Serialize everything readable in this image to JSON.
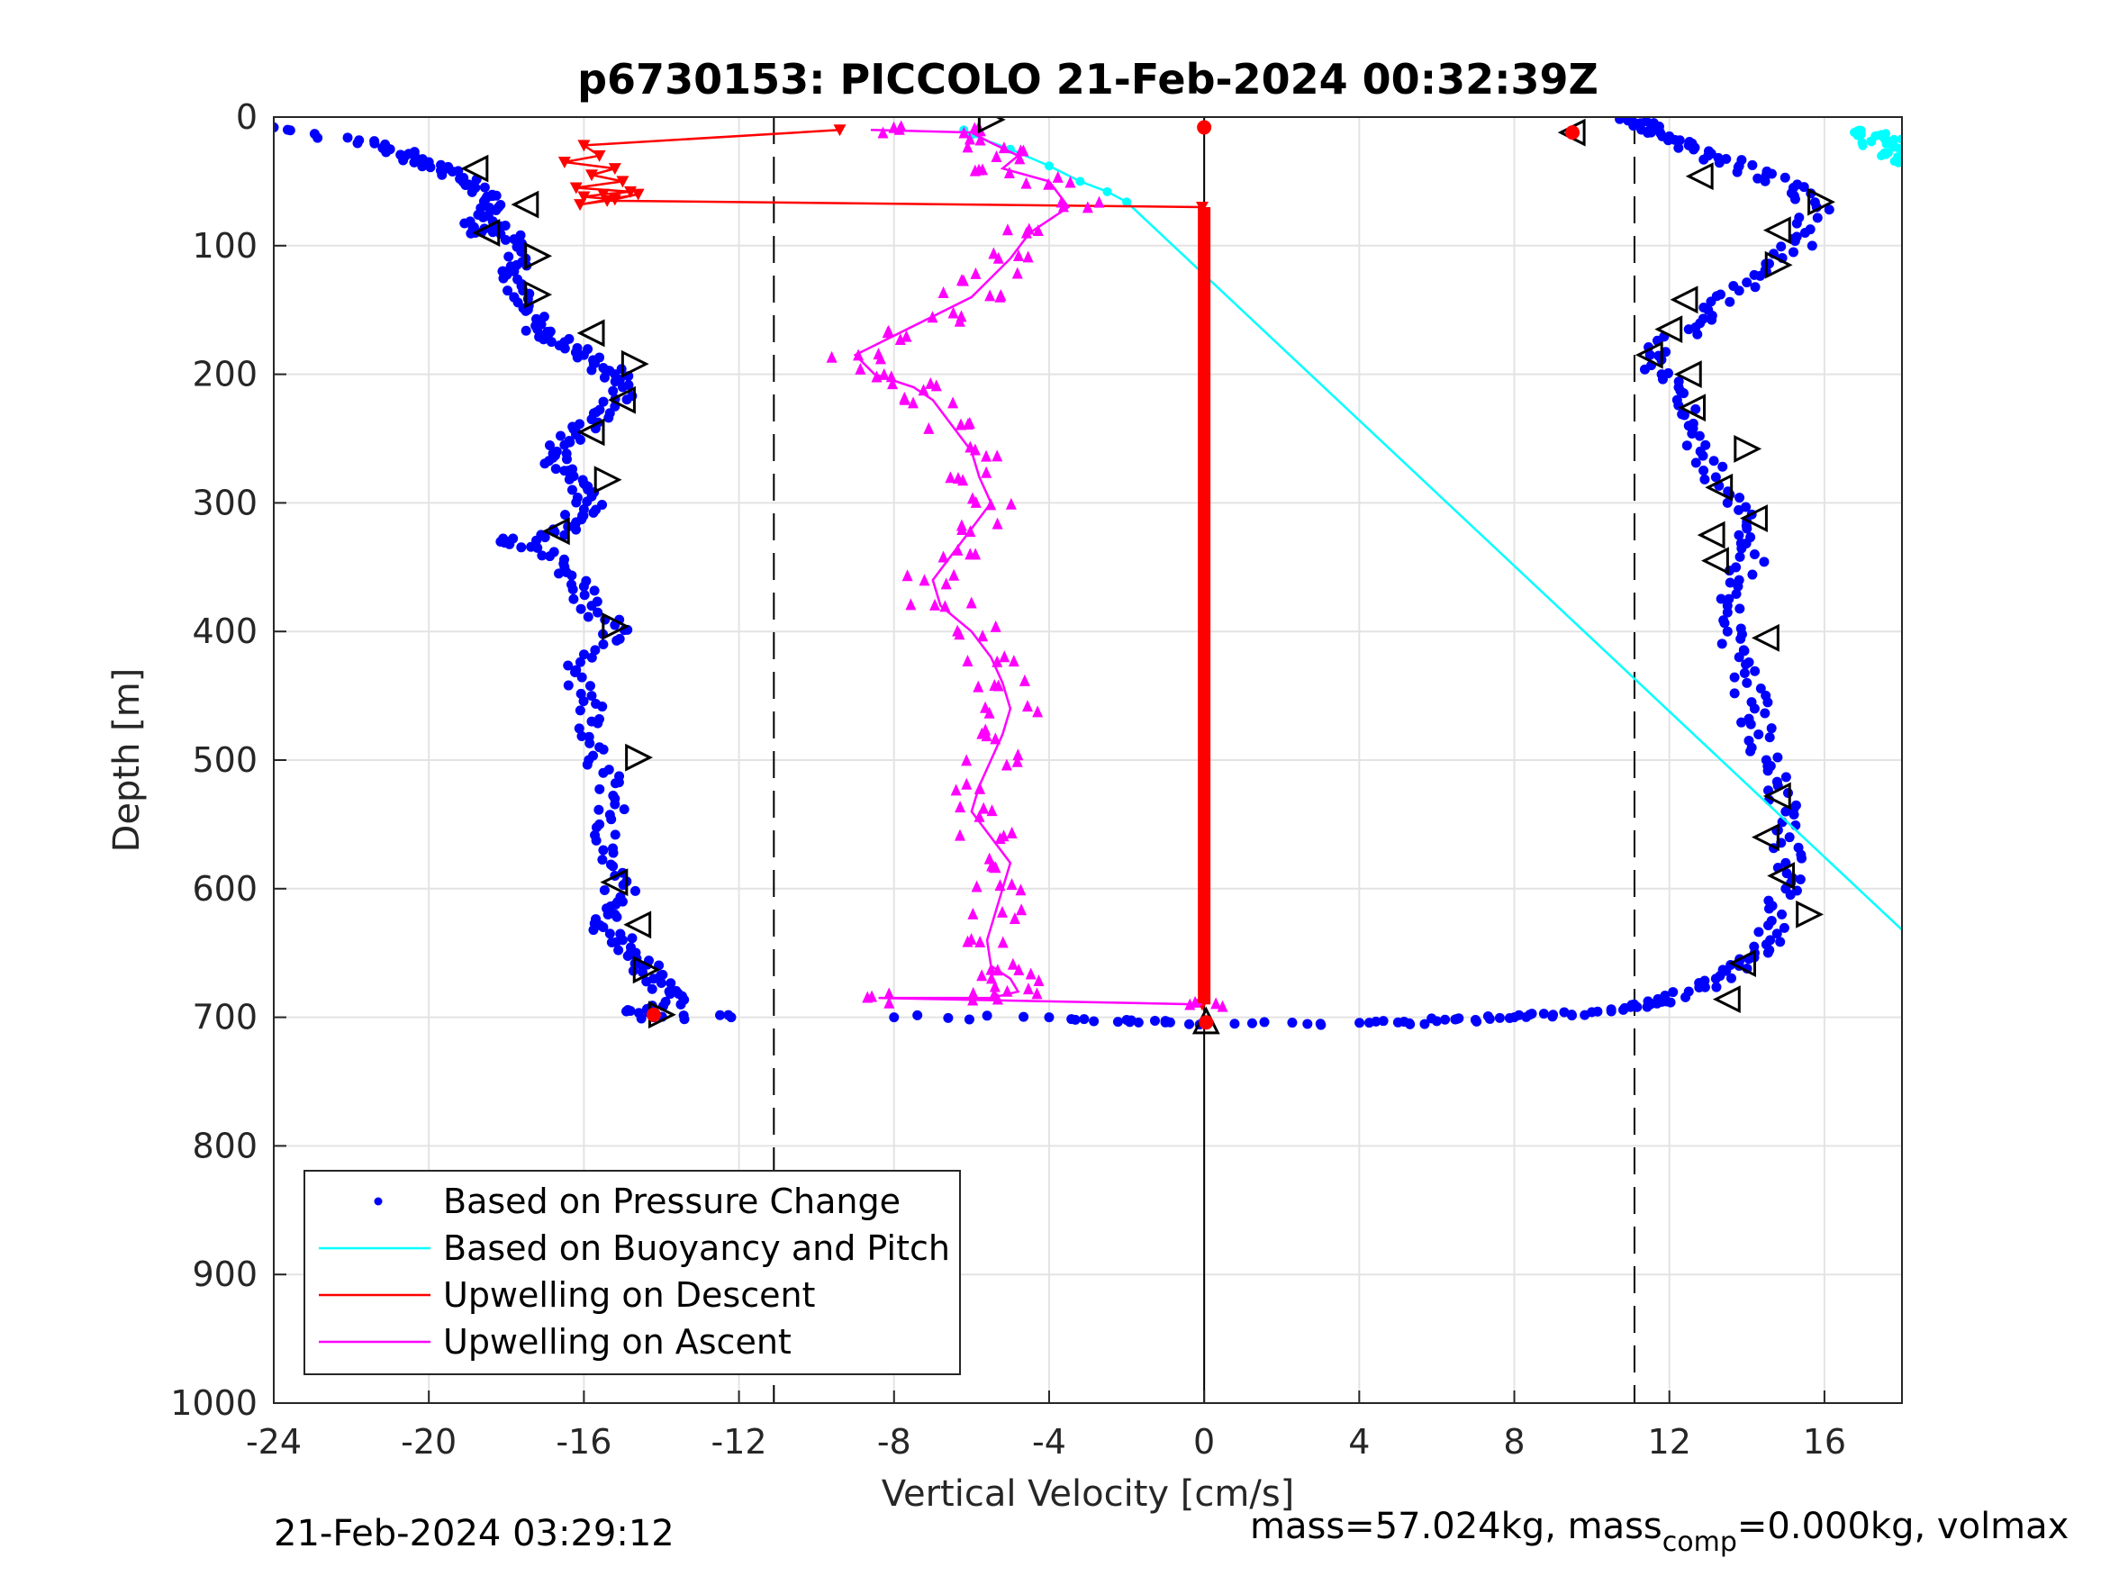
{
  "chart_data": {
    "type": "scatter",
    "title": "p6730153: PICCOLO 21-Feb-2024 00:32:39Z",
    "xlabel": "Vertical Velocity [cm/s]",
    "ylabel": "Depth [m]",
    "xlim": [
      -24,
      18
    ],
    "ylim": [
      1000,
      0
    ],
    "y_reversed": true,
    "xticks": [
      "-24",
      "-20",
      "-16",
      "-12",
      "-8",
      "-4",
      "0",
      "4",
      "8",
      "12",
      "16"
    ],
    "xtick_values": [
      -24,
      -20,
      -16,
      -12,
      -8,
      -4,
      0,
      4,
      8,
      12,
      16
    ],
    "yticks": [
      "0",
      "100",
      "200",
      "300",
      "400",
      "500",
      "600",
      "700",
      "800",
      "900",
      "1000"
    ],
    "ytick_values": [
      0,
      100,
      200,
      300,
      400,
      500,
      600,
      700,
      800,
      900,
      1000
    ],
    "grid": true,
    "legend_position": "bottom-left",
    "reference_lines": {
      "dashed_x": [
        -11.1,
        11.1
      ],
      "solid_x": [
        0
      ]
    },
    "series": [
      {
        "name": "Based on Pressure Change",
        "style": "dots",
        "color": "#0000ff",
        "descent": {
          "x": [
            -24,
            -21.8,
            -21,
            -20.6,
            -20,
            -19.5,
            -19.2,
            -18.8,
            -18.5,
            -18.2,
            -18.6,
            -18.8,
            -18.2,
            -17.8,
            -17.5,
            -17.8,
            -17.6,
            -17.8,
            -17.5,
            -17.2,
            -17.0,
            -16.5,
            -16.0,
            -15.5,
            -15.2,
            -15.0,
            -15.2,
            -15.8,
            -16.2,
            -16.5,
            -16.8,
            -16.5,
            -16.0,
            -15.8,
            -16.0,
            -16.2,
            -16.5,
            -18.0,
            -17.2,
            -16.5,
            -16.0,
            -15.8,
            -15.2,
            -15.5,
            -16.2,
            -15.8,
            -15.8,
            -15.6,
            -15.5,
            -15.2,
            -15.6,
            -15.5,
            -15.2,
            -15.0,
            -15.2,
            -15.5,
            -15.0,
            -14.8,
            -14.5,
            -14.2,
            -13.8,
            -13.5,
            -14.8,
            -14.2,
            -12.2
          ],
          "y": [
            8,
            18,
            25,
            30,
            35,
            40,
            48,
            55,
            62,
            70,
            78,
            90,
            85,
            95,
            110,
            120,
            130,
            140,
            150,
            165,
            170,
            175,
            185,
            195,
            200,
            210,
            225,
            235,
            245,
            255,
            265,
            275,
            285,
            295,
            305,
            315,
            325,
            330,
            335,
            350,
            365,
            380,
            395,
            410,
            430,
            450,
            470,
            490,
            510,
            530,
            550,
            570,
            590,
            610,
            620,
            630,
            640,
            650,
            660,
            670,
            680,
            690,
            695,
            700,
            700
          ]
        },
        "ascent": {
          "x": [
            -8,
            -4,
            -2,
            -1,
            0,
            3,
            5,
            6,
            7,
            8,
            9,
            10,
            11,
            11.5,
            11.8,
            12.5,
            13.2,
            13.8,
            14.2,
            14.6,
            14.9,
            15.0,
            15.0,
            15.1,
            15.0,
            14.8,
            14.5,
            14.3,
            14.2,
            14.0,
            13.8,
            13.5,
            13.5,
            13.8,
            14.2,
            14.0,
            13.5,
            13.2,
            12.8,
            12.5,
            12.2,
            11.8,
            11.5,
            12.5,
            13.0,
            13.8,
            14.5,
            15.2,
            15.5,
            15.8,
            15.2,
            14.5,
            13.8,
            13.0,
            12.5,
            12.0,
            11.5,
            11.2,
            11.0
          ],
          "y": [
            700,
            700,
            702,
            704,
            705,
            705,
            704,
            703,
            702,
            700,
            698,
            696,
            692,
            690,
            688,
            680,
            670,
            660,
            650,
            640,
            620,
            600,
            580,
            560,
            540,
            520,
            500,
            480,
            460,
            440,
            420,
            400,
            380,
            360,
            340,
            320,
            300,
            280,
            260,
            240,
            220,
            200,
            185,
            165,
            150,
            135,
            120,
            105,
            90,
            70,
            55,
            45,
            38,
            30,
            22,
            15,
            10,
            6,
            2
          ]
        }
      },
      {
        "name": "Based on Buoyancy and Pitch",
        "style": "line",
        "color": "#00ffff",
        "descent_line": {
          "x": [
            -6.2,
            -6.0,
            -5.0,
            -4.0,
            -3.2,
            -2.5,
            -2.0,
            18.0
          ],
          "y": [
            10,
            14,
            25,
            38,
            50,
            58,
            66,
            632
          ]
        },
        "surface_cluster": {
          "x": [
            17.0,
            17.4,
            17.8,
            18.0,
            17.6,
            17.9,
            17.2
          ],
          "y": [
            12,
            15,
            18,
            24,
            30,
            35,
            20
          ]
        }
      },
      {
        "name": "Upwelling on Descent",
        "style": "line-triangle-down",
        "color": "#ff0000",
        "x": [
          -9.4,
          -16.0,
          -15.6,
          -16.5,
          -15.2,
          -15.8,
          -15.0,
          -16.2,
          -14.8,
          -15.5,
          -16.0,
          -15.2,
          -14.6,
          -16.1,
          -15.4,
          -0.05,
          -0.05
        ],
        "y": [
          10,
          22,
          30,
          35,
          40,
          45,
          50,
          55,
          58,
          60,
          62,
          64,
          60,
          68,
          65,
          70,
          690
        ]
      },
      {
        "name": "Upwelling on Ascent",
        "style": "line-triangle-up",
        "color": "#ff00ff",
        "x": [
          -8.6,
          -6.0,
          -5.5,
          -4.8,
          -5.2,
          -4.0,
          -3.5,
          -4.5,
          -5.0,
          -5.5,
          -6.0,
          -7.0,
          -8.0,
          -9.0,
          -8.5,
          -7.5,
          -7.0,
          -6.5,
          -6.0,
          -5.8,
          -5.5,
          -6.0,
          -6.5,
          -7.0,
          -6.8,
          -6.0,
          -5.5,
          -5.2,
          -5.0,
          -5.2,
          -5.5,
          -5.8,
          -6.0,
          -5.5,
          -5.0,
          -5.2,
          -5.4,
          -5.6,
          -5.5,
          -5.0,
          -4.8,
          -5.5,
          -8.4,
          -0.05
        ],
        "y": [
          10,
          12,
          20,
          30,
          40,
          50,
          70,
          90,
          110,
          125,
          140,
          155,
          170,
          185,
          200,
          210,
          220,
          240,
          260,
          280,
          300,
          320,
          340,
          360,
          380,
          400,
          420,
          440,
          460,
          480,
          500,
          520,
          540,
          560,
          580,
          600,
          620,
          640,
          660,
          670,
          680,
          685,
          685,
          690
        ]
      },
      {
        "name": "markers-open-triangles",
        "style": "open-triangles",
        "color": "#000000",
        "points": [
          {
            "x": -5.5,
            "y": 2,
            "dir": "right"
          },
          {
            "x": -18.8,
            "y": 40,
            "dir": "left"
          },
          {
            "x": -17.5,
            "y": 68,
            "dir": "left"
          },
          {
            "x": -18.5,
            "y": 90,
            "dir": "left"
          },
          {
            "x": -17.2,
            "y": 108,
            "dir": "right"
          },
          {
            "x": -17.2,
            "y": 138,
            "dir": "right"
          },
          {
            "x": -15.8,
            "y": 168,
            "dir": "left"
          },
          {
            "x": -14.7,
            "y": 192,
            "dir": "right"
          },
          {
            "x": -15.0,
            "y": 220,
            "dir": "left"
          },
          {
            "x": -15.8,
            "y": 245,
            "dir": "left"
          },
          {
            "x": -15.4,
            "y": 282,
            "dir": "right"
          },
          {
            "x": -16.7,
            "y": 322,
            "dir": "left"
          },
          {
            "x": -15.2,
            "y": 396,
            "dir": "right"
          },
          {
            "x": -14.6,
            "y": 498,
            "dir": "right"
          },
          {
            "x": -15.2,
            "y": 595,
            "dir": "left"
          },
          {
            "x": -14.6,
            "y": 628,
            "dir": "left"
          },
          {
            "x": -14.4,
            "y": 663,
            "dir": "right"
          },
          {
            "x": -14.0,
            "y": 698,
            "dir": "right"
          },
          {
            "x": 9.5,
            "y": 12,
            "dir": "left"
          },
          {
            "x": 12.8,
            "y": 46,
            "dir": "left"
          },
          {
            "x": 15.9,
            "y": 66,
            "dir": "right"
          },
          {
            "x": 14.8,
            "y": 88,
            "dir": "left"
          },
          {
            "x": 14.8,
            "y": 115,
            "dir": "right"
          },
          {
            "x": 12.4,
            "y": 142,
            "dir": "left"
          },
          {
            "x": 12.0,
            "y": 165,
            "dir": "left"
          },
          {
            "x": 11.5,
            "y": 185,
            "dir": "left"
          },
          {
            "x": 12.5,
            "y": 200,
            "dir": "left"
          },
          {
            "x": 12.6,
            "y": 226,
            "dir": "left"
          },
          {
            "x": 14.0,
            "y": 258,
            "dir": "right"
          },
          {
            "x": 13.3,
            "y": 288,
            "dir": "left"
          },
          {
            "x": 14.2,
            "y": 312,
            "dir": "left"
          },
          {
            "x": 13.1,
            "y": 325,
            "dir": "left"
          },
          {
            "x": 13.2,
            "y": 345,
            "dir": "left"
          },
          {
            "x": 14.5,
            "y": 405,
            "dir": "left"
          },
          {
            "x": 14.8,
            "y": 528,
            "dir": "left"
          },
          {
            "x": 14.5,
            "y": 560,
            "dir": "left"
          },
          {
            "x": 14.9,
            "y": 590,
            "dir": "left"
          },
          {
            "x": 15.6,
            "y": 620,
            "dir": "right"
          },
          {
            "x": 13.9,
            "y": 658,
            "dir": "left"
          },
          {
            "x": 13.5,
            "y": 686,
            "dir": "left"
          },
          {
            "x": 0.05,
            "y": 703,
            "dir": "up"
          }
        ]
      }
    ],
    "highlight_points": {
      "color": "#ff0000",
      "points": [
        {
          "x": -14.2,
          "y": 698
        },
        {
          "x": 9.5,
          "y": 12
        },
        {
          "x": 0.05,
          "y": 704
        },
        {
          "x": 0.0,
          "y": 8
        }
      ]
    }
  },
  "legend": [
    {
      "label": "Based on Pressure Change",
      "color": "#0000ff",
      "kind": "dot"
    },
    {
      "label": "Based on Buoyancy and Pitch",
      "color": "#00ffff",
      "kind": "line"
    },
    {
      "label": "Upwelling on Descent",
      "color": "#ff0000",
      "kind": "line"
    },
    {
      "label": "Upwelling on Ascent",
      "color": "#ff00ff",
      "kind": "line"
    }
  ],
  "footer": {
    "timestamp": "21-Feb-2024 03:29:12",
    "mass_text_1": "mass=57.024kg, mass",
    "mass_sub": "comp",
    "mass_text_2": "=0.000kg, volmax"
  }
}
